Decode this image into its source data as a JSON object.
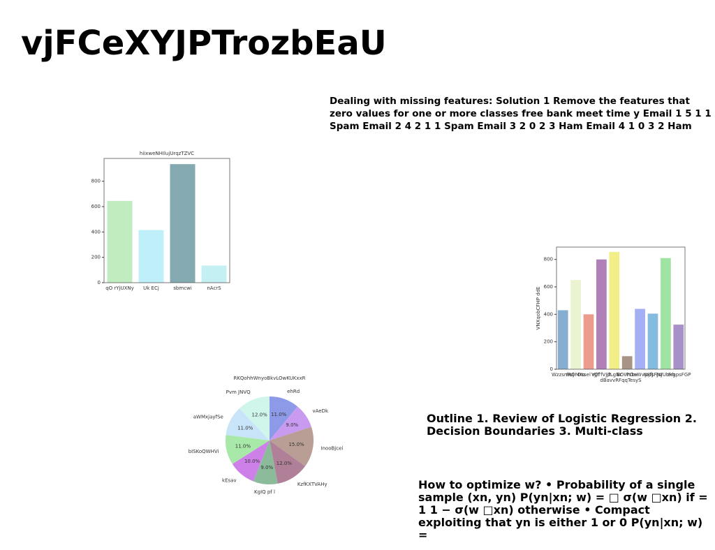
{
  "title": "vjFCeXYJPTrozbEaU",
  "texts": [
    "Dealing with missing features: Solution 1 Remove the features that zero values for one or more classes free bank meet time y Email 1 5 1 1 Spam Email 2 4 2 1 1 Spam Email 3 2 0 2 3 Ham Email 4 1 0 3 2 Ham",
    "Outline 1. Review of Logistic Regression 2. Decision Boundaries 3. Multi-class",
    "How to optimize w? • Probability of a single sample (xn, yn) P(yn|xn; w) = □ σ(w □xn) if = 1 1 − σ(w □xn) otherwise • Compact exploiting that yn is either 1 or 0 P(yn|xn; w) ="
  ],
  "chart_data": [
    {
      "type": "bar",
      "title": "hiixweNHIlujUrqzTZVC",
      "categories": [
        "qO rYjUXNy",
        "Uk ECj",
        "sbmcwi",
        "nAcrS"
      ],
      "values": [
        645,
        415,
        935,
        135
      ],
      "colors": [
        "#c0ecc0",
        "#bff0fa",
        "#84a9b0",
        "#c4f0f4"
      ],
      "ylim": [
        0,
        980
      ],
      "yticks": [
        0,
        200,
        400,
        600,
        800
      ]
    },
    {
      "type": "bar",
      "xlabel": "dBavvRFqqTesyS",
      "ylabel": "VNXqobCFHP ddE",
      "categories": [
        "Wzzsmwj",
        "fRDMKo",
        "Dssel rOf",
        "VJjTfVJjh",
        "dLgNr",
        "BOWYbv",
        "hOeWvyxfJ",
        "WjfsFJsJ",
        "iWUbxh",
        "rFrgpsFGP"
      ],
      "values": [
        430,
        650,
        400,
        800,
        855,
        95,
        440,
        405,
        810,
        325
      ],
      "colors": [
        "#86aed0",
        "#eaf4d0",
        "#ec9c8c",
        "#b080b8",
        "#f2ee88",
        "#a89484",
        "#a4b0f4",
        "#84bce0",
        "#a0e4a4",
        "#a890c8"
      ],
      "ylim": [
        0,
        890
      ],
      "yticks": [
        0,
        200,
        400,
        600,
        800
      ]
    },
    {
      "type": "pie",
      "title": "RKQohhWnyoBkvLOwKUKxxR",
      "categories": [
        "ehRd",
        "vAeDk",
        "InooBjcei",
        "KzfKXTVAHy",
        "KgIQ pf l",
        "kEsav",
        "bISKoQWHVi",
        "aWMxjayfSe",
        "Pvm JNVQ"
      ],
      "values": [
        11,
        9,
        15,
        12,
        9,
        10,
        11,
        11,
        12
      ],
      "value_labels": [
        "11.0%",
        "9.0%",
        "15.0%",
        "12.0%",
        "9.0%",
        "10.0%",
        "11.0%",
        "11.0%",
        "12.0%"
      ],
      "colors": [
        "#8c9ae8",
        "#c89af0",
        "#b89e94",
        "#b08098",
        "#8cbb9c",
        "#cc80e8",
        "#a8e8a8",
        "#c8e4f8",
        "#d0f6ec"
      ]
    }
  ]
}
